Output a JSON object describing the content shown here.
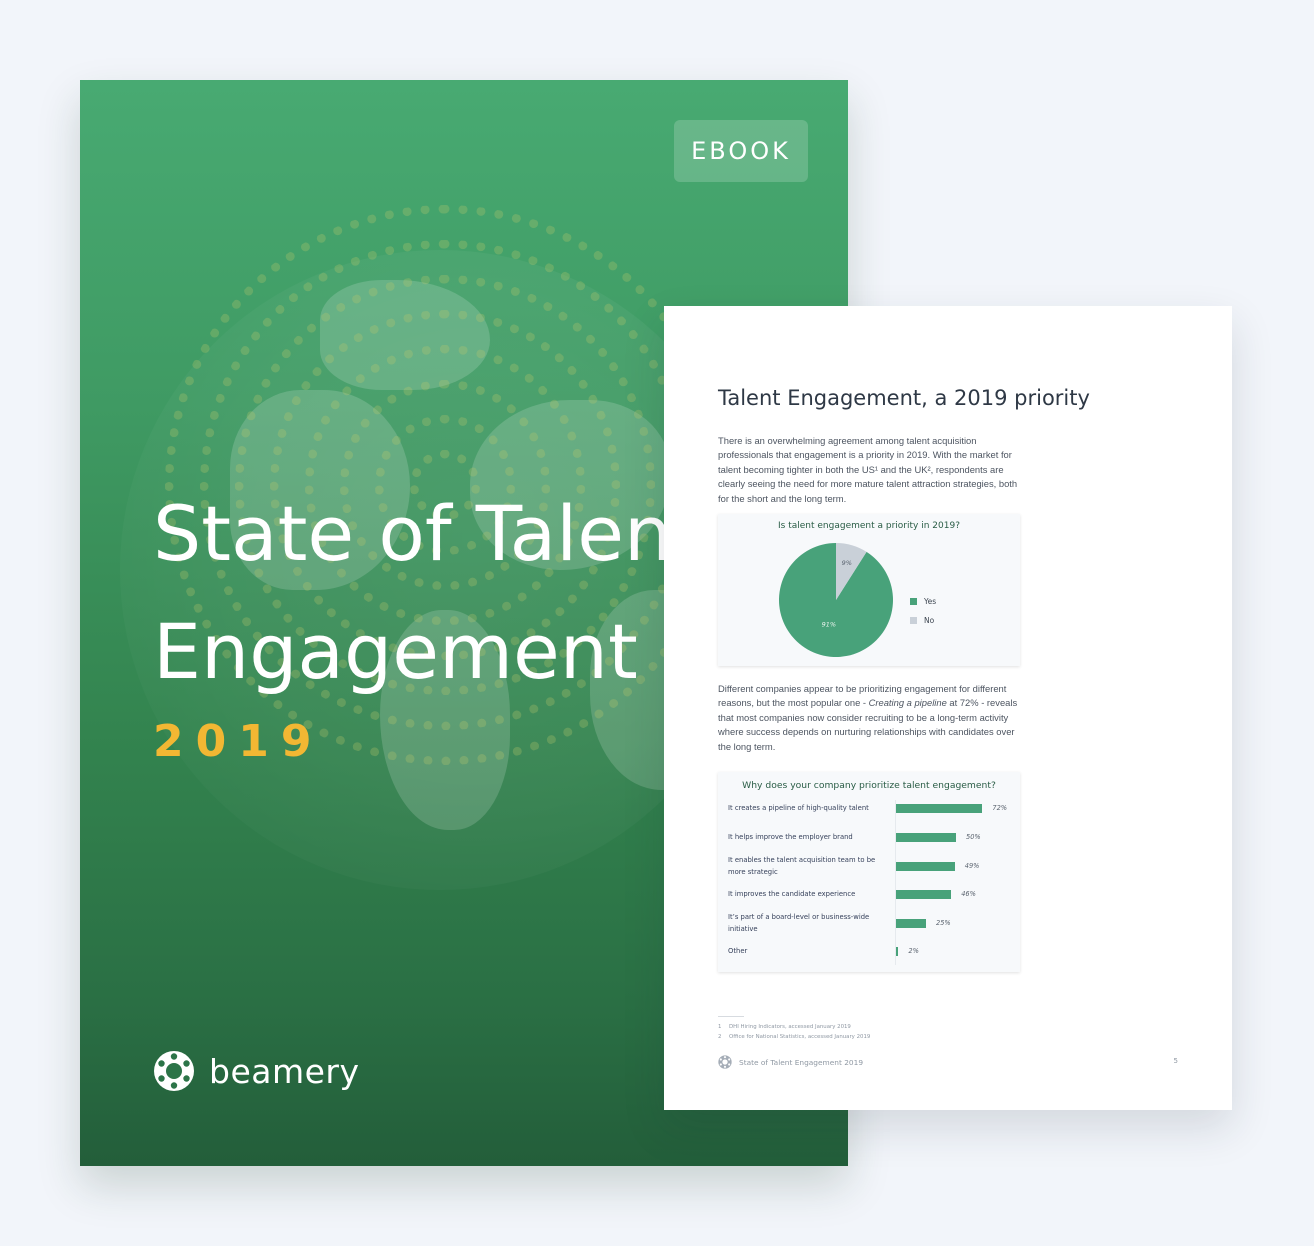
{
  "cover": {
    "badge": "EBOOK",
    "title_line1": "State of Talent",
    "title_line2": "Engagement",
    "year": "2019",
    "brand": "beamery",
    "logo_icon": "beamery-logo-icon",
    "colors": {
      "background_top": "#48aa72",
      "background_bottom": "#235e3a",
      "year": "#f2b733"
    }
  },
  "page": {
    "title": "Talent Engagement, a 2019 priority",
    "intro": "There is an overwhelming agreement among talent acquisition professionals that engagement is a priority in 2019. With the market for talent becoming tighter in both the US¹ and the UK², respondents are clearly seeing the need for more mature talent attraction strategies, both for the short and the long term.",
    "second_para": {
      "before": "Different companies appear to be prioritizing engagement for different reasons, but the most popular one - ",
      "emphasis": "Creating a pipeline",
      "after": " at 72% - reveals that most companies now consider recruiting to be a long-term activity where success depends on nurturing relationships with candidates over the long term."
    },
    "footnotes": [
      {
        "num": "1",
        "text": "DHI Hiring Indicators, accessed January 2019"
      },
      {
        "num": "2",
        "text": "Office for National Statistics, accessed January 2019"
      }
    ],
    "footer_text": "State of Talent Engagement 2019",
    "page_number": "5"
  },
  "chart_data": [
    {
      "type": "pie",
      "title": "Is talent engagement a priority in 2019?",
      "categories": [
        "Yes",
        "No"
      ],
      "values": [
        91,
        9
      ],
      "labels": [
        "91%",
        "9%"
      ],
      "colors": [
        "#48a27a",
        "#c9d0d8"
      ],
      "legend_position": "right"
    },
    {
      "type": "bar",
      "orientation": "horizontal",
      "title": "Why does your company prioritize talent engagement?",
      "categories": [
        "It creates a pipeline of high-quality talent",
        "It helps improve the employer brand",
        "It enables the talent acquisition team to be more strategic",
        "It improves the candidate experience",
        "It’s part of a board-level or business-wide initiative",
        "Other"
      ],
      "values": [
        72,
        50,
        49,
        46,
        25,
        2
      ],
      "labels": [
        "72%",
        "50%",
        "49%",
        "46%",
        "25%",
        "2%"
      ],
      "color": "#48a27a",
      "xlim": [
        0,
        100
      ]
    }
  ]
}
